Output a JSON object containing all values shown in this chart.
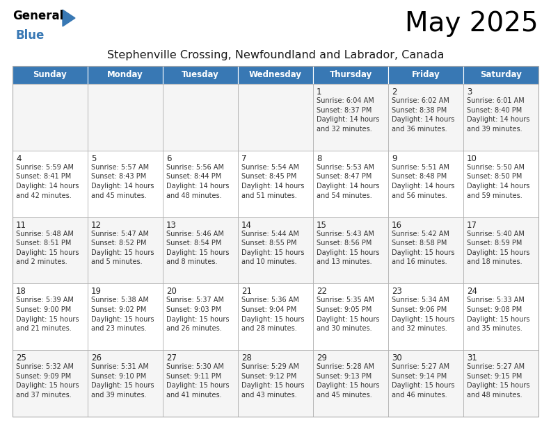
{
  "title": "May 2025",
  "subtitle": "Stephenville Crossing, Newfoundland and Labrador, Canada",
  "header_color": "#3878b4",
  "header_text_color": "#ffffff",
  "cell_bg_even": "#f5f5f5",
  "cell_bg_odd": "#ffffff",
  "border_color": "#aaaaaa",
  "text_color": "#333333",
  "days_of_week": [
    "Sunday",
    "Monday",
    "Tuesday",
    "Wednesday",
    "Thursday",
    "Friday",
    "Saturday"
  ],
  "weeks": [
    [
      {
        "day": "",
        "info": ""
      },
      {
        "day": "",
        "info": ""
      },
      {
        "day": "",
        "info": ""
      },
      {
        "day": "",
        "info": ""
      },
      {
        "day": "1",
        "info": "Sunrise: 6:04 AM\nSunset: 8:37 PM\nDaylight: 14 hours\nand 32 minutes."
      },
      {
        "day": "2",
        "info": "Sunrise: 6:02 AM\nSunset: 8:38 PM\nDaylight: 14 hours\nand 36 minutes."
      },
      {
        "day": "3",
        "info": "Sunrise: 6:01 AM\nSunset: 8:40 PM\nDaylight: 14 hours\nand 39 minutes."
      }
    ],
    [
      {
        "day": "4",
        "info": "Sunrise: 5:59 AM\nSunset: 8:41 PM\nDaylight: 14 hours\nand 42 minutes."
      },
      {
        "day": "5",
        "info": "Sunrise: 5:57 AM\nSunset: 8:43 PM\nDaylight: 14 hours\nand 45 minutes."
      },
      {
        "day": "6",
        "info": "Sunrise: 5:56 AM\nSunset: 8:44 PM\nDaylight: 14 hours\nand 48 minutes."
      },
      {
        "day": "7",
        "info": "Sunrise: 5:54 AM\nSunset: 8:45 PM\nDaylight: 14 hours\nand 51 minutes."
      },
      {
        "day": "8",
        "info": "Sunrise: 5:53 AM\nSunset: 8:47 PM\nDaylight: 14 hours\nand 54 minutes."
      },
      {
        "day": "9",
        "info": "Sunrise: 5:51 AM\nSunset: 8:48 PM\nDaylight: 14 hours\nand 56 minutes."
      },
      {
        "day": "10",
        "info": "Sunrise: 5:50 AM\nSunset: 8:50 PM\nDaylight: 14 hours\nand 59 minutes."
      }
    ],
    [
      {
        "day": "11",
        "info": "Sunrise: 5:48 AM\nSunset: 8:51 PM\nDaylight: 15 hours\nand 2 minutes."
      },
      {
        "day": "12",
        "info": "Sunrise: 5:47 AM\nSunset: 8:52 PM\nDaylight: 15 hours\nand 5 minutes."
      },
      {
        "day": "13",
        "info": "Sunrise: 5:46 AM\nSunset: 8:54 PM\nDaylight: 15 hours\nand 8 minutes."
      },
      {
        "day": "14",
        "info": "Sunrise: 5:44 AM\nSunset: 8:55 PM\nDaylight: 15 hours\nand 10 minutes."
      },
      {
        "day": "15",
        "info": "Sunrise: 5:43 AM\nSunset: 8:56 PM\nDaylight: 15 hours\nand 13 minutes."
      },
      {
        "day": "16",
        "info": "Sunrise: 5:42 AM\nSunset: 8:58 PM\nDaylight: 15 hours\nand 16 minutes."
      },
      {
        "day": "17",
        "info": "Sunrise: 5:40 AM\nSunset: 8:59 PM\nDaylight: 15 hours\nand 18 minutes."
      }
    ],
    [
      {
        "day": "18",
        "info": "Sunrise: 5:39 AM\nSunset: 9:00 PM\nDaylight: 15 hours\nand 21 minutes."
      },
      {
        "day": "19",
        "info": "Sunrise: 5:38 AM\nSunset: 9:02 PM\nDaylight: 15 hours\nand 23 minutes."
      },
      {
        "day": "20",
        "info": "Sunrise: 5:37 AM\nSunset: 9:03 PM\nDaylight: 15 hours\nand 26 minutes."
      },
      {
        "day": "21",
        "info": "Sunrise: 5:36 AM\nSunset: 9:04 PM\nDaylight: 15 hours\nand 28 minutes."
      },
      {
        "day": "22",
        "info": "Sunrise: 5:35 AM\nSunset: 9:05 PM\nDaylight: 15 hours\nand 30 minutes."
      },
      {
        "day": "23",
        "info": "Sunrise: 5:34 AM\nSunset: 9:06 PM\nDaylight: 15 hours\nand 32 minutes."
      },
      {
        "day": "24",
        "info": "Sunrise: 5:33 AM\nSunset: 9:08 PM\nDaylight: 15 hours\nand 35 minutes."
      }
    ],
    [
      {
        "day": "25",
        "info": "Sunrise: 5:32 AM\nSunset: 9:09 PM\nDaylight: 15 hours\nand 37 minutes."
      },
      {
        "day": "26",
        "info": "Sunrise: 5:31 AM\nSunset: 9:10 PM\nDaylight: 15 hours\nand 39 minutes."
      },
      {
        "day": "27",
        "info": "Sunrise: 5:30 AM\nSunset: 9:11 PM\nDaylight: 15 hours\nand 41 minutes."
      },
      {
        "day": "28",
        "info": "Sunrise: 5:29 AM\nSunset: 9:12 PM\nDaylight: 15 hours\nand 43 minutes."
      },
      {
        "day": "29",
        "info": "Sunrise: 5:28 AM\nSunset: 9:13 PM\nDaylight: 15 hours\nand 45 minutes."
      },
      {
        "day": "30",
        "info": "Sunrise: 5:27 AM\nSunset: 9:14 PM\nDaylight: 15 hours\nand 46 minutes."
      },
      {
        "day": "31",
        "info": "Sunrise: 5:27 AM\nSunset: 9:15 PM\nDaylight: 15 hours\nand 48 minutes."
      }
    ]
  ]
}
